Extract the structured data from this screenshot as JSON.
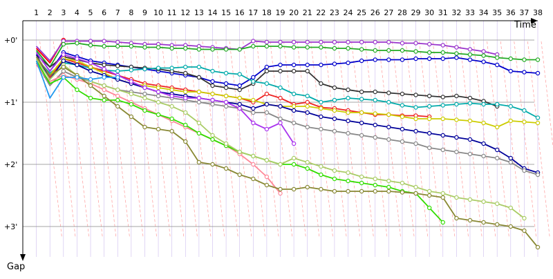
{
  "chart_data": {
    "type": "line",
    "xlabel": "Time",
    "ylabel": "Gap",
    "x_ticks": [
      "1",
      "2",
      "3",
      "4",
      "5",
      "6",
      "7",
      "8",
      "9",
      "10",
      "11",
      "12",
      "13",
      "14",
      "15",
      "16",
      "17",
      "18",
      "19",
      "20",
      "21",
      "22",
      "23",
      "24",
      "25",
      "26",
      "27",
      "28",
      "29",
      "30",
      "31",
      "32",
      "33",
      "34",
      "35",
      "36",
      "37",
      "38"
    ],
    "y_ticks": [
      "+0'",
      "+1'",
      "+2'",
      "+3'"
    ],
    "y_tick_values": [
      0,
      60,
      120,
      180
    ],
    "xlim": [
      1,
      38
    ],
    "ylim": [
      0,
      200
    ],
    "grid": "horizontal lines at each minute, vertical lap lines",
    "lapped_guides": "dashed diagonal lines marking one-lap-down gaps",
    "series": [
      {
        "color": "#ff0000",
        "values": [
          8,
          22,
          0,
          0,
          0,
          0,
          0,
          0,
          0,
          0,
          0,
          0,
          0,
          0,
          0,
          0,
          0,
          0,
          0,
          0,
          0,
          0,
          0,
          0,
          0,
          0,
          0,
          0,
          0,
          0,
          0,
          0,
          0,
          0,
          0,
          0,
          0,
          0
        ]
      },
      {
        "color": "#9933cc",
        "values": [
          6,
          20,
          1,
          1,
          1,
          1,
          2,
          3,
          4,
          4,
          5,
          5,
          6,
          7,
          8,
          9,
          1,
          2,
          2,
          2,
          2,
          2,
          2,
          2,
          2,
          2,
          2,
          3,
          3,
          4,
          5,
          7,
          9,
          11,
          14,
          0,
          0,
          0
        ]
      },
      {
        "color": "#22aa22",
        "values": [
          10,
          26,
          4,
          3,
          5,
          6,
          6,
          6,
          7,
          7,
          8,
          8,
          9,
          9,
          9,
          9,
          6,
          6,
          6,
          7,
          7,
          7,
          8,
          8,
          9,
          10,
          10,
          10,
          11,
          12,
          12,
          13,
          14,
          15,
          17,
          18,
          19,
          19
        ]
      },
      {
        "color": "#0000cc",
        "values": [
          12,
          30,
          12,
          16,
          20,
          22,
          24,
          26,
          28,
          30,
          32,
          34,
          36,
          40,
          42,
          44,
          36,
          26,
          24,
          24,
          24,
          24,
          23,
          22,
          20,
          19,
          19,
          19,
          18,
          18,
          18,
          17,
          19,
          21,
          24,
          30,
          31,
          32
        ]
      },
      {
        "color": "#333333",
        "values": [
          14,
          26,
          16,
          19,
          22,
          24,
          25,
          26,
          27,
          28,
          30,
          32,
          36,
          44,
          46,
          48,
          42,
          30,
          30,
          30,
          30,
          42,
          46,
          48,
          50,
          50,
          51,
          52,
          53,
          54,
          55,
          54,
          56,
          59,
          64,
          0,
          0,
          0
        ]
      },
      {
        "color": "#00aaaa",
        "values": [
          18,
          32,
          22,
          24,
          27,
          29,
          30,
          29,
          28,
          27,
          27,
          26,
          26,
          30,
          32,
          33,
          40,
          42,
          46,
          52,
          54,
          60,
          58,
          56,
          57,
          58,
          60,
          63,
          65,
          64,
          63,
          62,
          61,
          62,
          62,
          64,
          68,
          75
        ]
      },
      {
        "color": "#ee2222",
        "values": [
          16,
          36,
          18,
          22,
          26,
          30,
          34,
          38,
          42,
          44,
          46,
          48,
          50,
          52,
          54,
          56,
          60,
          52,
          56,
          62,
          60,
          65,
          66,
          68,
          70,
          72,
          72,
          73,
          73,
          74,
          0,
          0,
          0,
          0,
          0,
          0,
          0,
          0
        ]
      },
      {
        "color": "#cccc00",
        "values": [
          20,
          34,
          18,
          20,
          26,
          32,
          38,
          42,
          44,
          46,
          48,
          50,
          50,
          52,
          54,
          56,
          58,
          62,
          64,
          64,
          64,
          66,
          68,
          70,
          70,
          71,
          72,
          74,
          76,
          76,
          76,
          77,
          78,
          80,
          84,
          78,
          79,
          80
        ]
      },
      {
        "color": "#000099",
        "values": [
          14,
          38,
          20,
          24,
          30,
          34,
          38,
          42,
          46,
          50,
          52,
          54,
          56,
          58,
          60,
          62,
          66,
          62,
          64,
          68,
          70,
          74,
          76,
          78,
          80,
          82,
          84,
          86,
          88,
          90,
          92,
          94,
          96,
          100,
          106,
          114,
          124,
          128
        ]
      },
      {
        "color": "#888888",
        "values": [
          22,
          44,
          30,
          36,
          40,
          44,
          48,
          50,
          52,
          54,
          56,
          58,
          60,
          62,
          64,
          66,
          70,
          70,
          76,
          80,
          84,
          86,
          88,
          90,
          92,
          94,
          96,
          98,
          100,
          104,
          106,
          108,
          110,
          112,
          114,
          118,
          126,
          130
        ]
      },
      {
        "color": "#ff8899",
        "values": [
          24,
          40,
          34,
          38,
          42,
          48,
          54,
          60,
          66,
          72,
          78,
          84,
          90,
          96,
          102,
          110,
          120,
          132,
          148,
          0,
          0,
          0,
          0,
          0,
          0,
          0,
          0,
          0,
          0,
          0,
          0,
          0,
          0,
          0,
          0,
          0,
          0,
          0
        ]
      },
      {
        "color": "#aa33ee",
        "values": [
          12,
          30,
          14,
          18,
          22,
          28,
          34,
          40,
          46,
          50,
          54,
          56,
          56,
          58,
          60,
          66,
          80,
          86,
          80,
          100,
          0,
          0,
          0,
          0,
          0,
          0,
          0,
          0,
          0,
          0,
          0,
          0,
          0,
          0,
          0,
          0,
          0,
          0
        ]
      },
      {
        "color": "#33dd00",
        "values": [
          20,
          42,
          36,
          48,
          56,
          58,
          58,
          62,
          68,
          72,
          76,
          82,
          90,
          96,
          102,
          108,
          112,
          116,
          120,
          120,
          124,
          130,
          134,
          136,
          138,
          140,
          142,
          146,
          148,
          162,
          176,
          0,
          0,
          0,
          0,
          0,
          0,
          0
        ]
      },
      {
        "color": "#aacc66",
        "values": [
          18,
          38,
          24,
          34,
          40,
          44,
          48,
          52,
          56,
          60,
          64,
          70,
          80,
          92,
          100,
          108,
          112,
          116,
          120,
          114,
          118,
          122,
          126,
          128,
          132,
          134,
          136,
          138,
          142,
          146,
          148,
          152,
          154,
          156,
          158,
          162,
          172,
          0
        ]
      },
      {
        "color": "#888833",
        "values": [
          16,
          34,
          26,
          34,
          44,
          54,
          64,
          74,
          84,
          86,
          88,
          98,
          118,
          120,
          124,
          130,
          134,
          140,
          144,
          144,
          142,
          144,
          146,
          146,
          146,
          146,
          146,
          147,
          148,
          150,
          152,
          172,
          174,
          176,
          178,
          180,
          184,
          200
        ]
      },
      {
        "color": "#2299ee",
        "values": [
          20,
          56,
          36,
          36,
          38,
          36,
          36,
          0,
          0,
          0,
          0,
          0,
          0,
          0,
          0,
          0,
          0,
          0,
          0,
          0,
          0,
          0,
          0,
          0,
          0,
          0,
          0,
          0,
          0,
          0,
          0,
          0,
          0,
          0,
          0,
          0,
          0,
          0
        ]
      }
    ]
  }
}
